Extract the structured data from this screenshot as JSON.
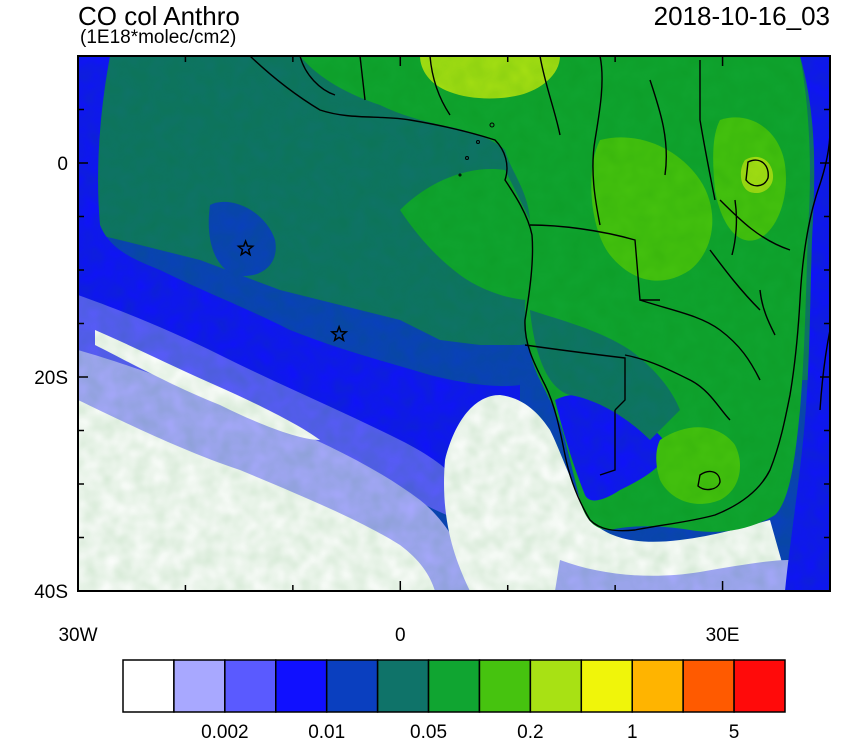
{
  "title": "CO col Anthro",
  "units": "(1E18*molec/cm2)",
  "date": "2018-10-16_03",
  "map": {
    "lon_range": [
      -30,
      40
    ],
    "lat_range": [
      -40,
      10
    ],
    "lat_ticks": [
      {
        "value": 0,
        "label": "0"
      },
      {
        "value": -20,
        "label": "20S"
      },
      {
        "value": -40,
        "label": "40S"
      }
    ],
    "lon_ticks": [
      {
        "value": -30,
        "label": "30W"
      },
      {
        "value": 0,
        "label": "0"
      },
      {
        "value": 30,
        "label": "30E"
      }
    ],
    "markers": [
      {
        "name": "star",
        "lon": -14.4,
        "lat": -8.0
      },
      {
        "name": "star",
        "lon": -5.7,
        "lat": -16.0
      }
    ]
  },
  "colorbar": {
    "colors": [
      "#ffffff",
      "#a8a8ff",
      "#5a5aff",
      "#1010ff",
      "#0a3fbf",
      "#0f7369",
      "#10a531",
      "#46c30f",
      "#a8e114",
      "#f0f50a",
      "#ffb400",
      "#ff5a00",
      "#ff0a0a"
    ],
    "labels": [
      {
        "after_box": 2,
        "text": "0.002"
      },
      {
        "after_box": 4,
        "text": "0.01"
      },
      {
        "after_box": 6,
        "text": "0.05"
      },
      {
        "after_box": 8,
        "text": "0.2"
      },
      {
        "after_box": 10,
        "text": "1"
      },
      {
        "after_box": 12,
        "text": "5"
      }
    ]
  }
}
